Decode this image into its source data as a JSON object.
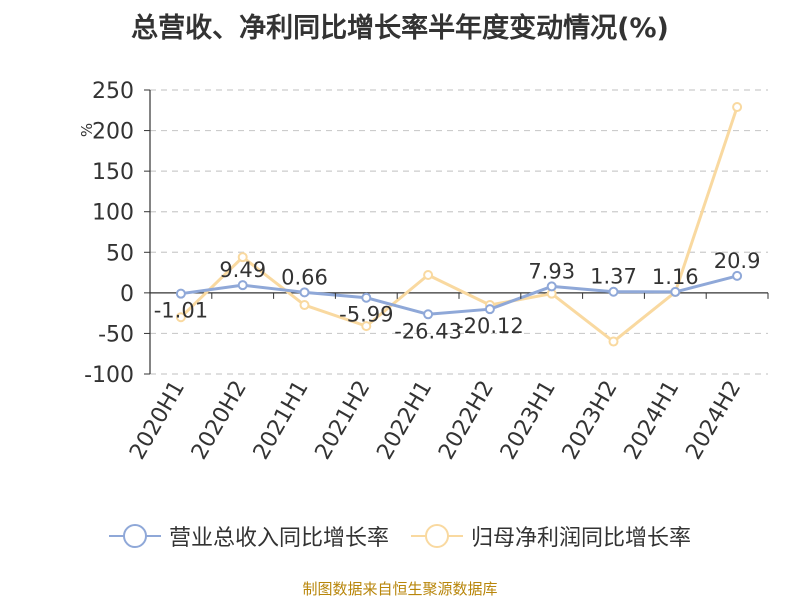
{
  "title": "总营收、净利同比增长率半年度变动情况(%)",
  "source": "制图数据来自恒生聚源数据库",
  "chart_data": {
    "type": "line",
    "title": "总营收、净利同比增长率半年度变动情况(%)",
    "ylabel": "%",
    "xlabel": "",
    "ylim": [
      -100,
      250
    ],
    "yticks": [
      250,
      200,
      150,
      100,
      50,
      0,
      -50,
      -100
    ],
    "grid": true,
    "legend_position": "bottom",
    "categories": [
      "2020H1",
      "2020H2",
      "2021H1",
      "2021H2",
      "2022H1",
      "2022H2",
      "2023H1",
      "2023H2",
      "2024H1",
      "2024H2"
    ],
    "series": [
      {
        "name": "营业总收入同比增长率",
        "color": "#8fa8d8",
        "values": [
          -1.01,
          9.49,
          0.66,
          -5.99,
          -26.43,
          -20.12,
          7.93,
          1.37,
          1.16,
          20.9
        ],
        "labels": [
          "-1.01",
          "9.49",
          "0.66",
          "-5.99",
          "-26.43",
          "-20.12",
          "7.93",
          "1.37",
          "1.16",
          "20.9"
        ]
      },
      {
        "name": "归母净利润同比增长率",
        "color": "#f9d9a0",
        "values": [
          -30,
          44,
          -15,
          -41,
          22,
          -15,
          -1,
          -60,
          1,
          229
        ]
      }
    ]
  }
}
